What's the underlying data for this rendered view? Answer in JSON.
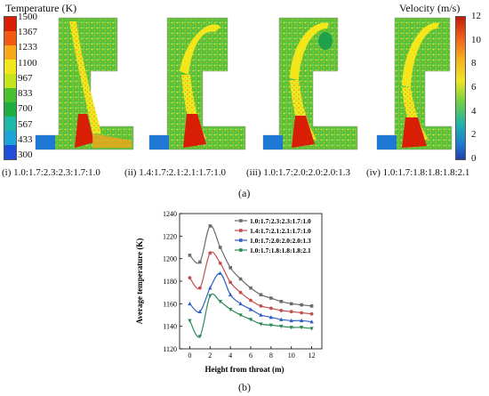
{
  "figure": {
    "label_a": "(a)",
    "label_b": "(b)",
    "temperature_legend": {
      "title": "Temperature (K)",
      "ticks": [
        "1500",
        "1367",
        "1233",
        "1100",
        "967",
        "833",
        "700",
        "567",
        "433",
        "300"
      ],
      "colors": [
        "#d81e05",
        "#f15a12",
        "#f7a81b",
        "#f3e61b",
        "#c6e51e",
        "#49c132",
        "#1fad3f",
        "#1fb7a7",
        "#20a3d6",
        "#1f4fd8"
      ]
    },
    "velocity_legend": {
      "title": "Velocity (m/s)",
      "ticks": [
        "12",
        "10",
        "8",
        "6",
        "4",
        "2",
        "0"
      ]
    },
    "panels": [
      {
        "id": "i",
        "caption": "(i) 1.0:1.7:2.3:2.3:1.7:1.0"
      },
      {
        "id": "ii",
        "caption": "(ii) 1.4:1.7:2.1:2.1:1.7:1.0"
      },
      {
        "id": "iii",
        "caption": "(iii) 1.0:1.7:2.0:2.0:2.0:1.3"
      },
      {
        "id": "iv",
        "caption": "(iv) 1.0:1.7:1.8:1.8:1.8:2.1"
      }
    ]
  },
  "chart_data": {
    "type": "line",
    "xlabel": "Height from throat (m)",
    "ylabel": "Average temperature (K)",
    "xlim": [
      -1,
      13
    ],
    "ylim": [
      1120,
      1240
    ],
    "xticks": [
      0,
      2,
      4,
      6,
      8,
      10,
      12
    ],
    "yticks": [
      1120,
      1140,
      1160,
      1180,
      1200,
      1220,
      1240
    ],
    "legend_position": "top-right",
    "series": [
      {
        "name": "1.0:1.7:2.3:2.3:1.7:1.0",
        "color": "#6b6b6b",
        "marker": "square",
        "x": [
          0,
          1,
          2,
          3,
          4,
          5,
          6,
          7,
          8,
          9,
          10,
          11,
          12
        ],
        "y": [
          1203,
          1197,
          1229,
          1210,
          1192,
          1182,
          1174,
          1168,
          1165,
          1162,
          1160,
          1159,
          1158
        ]
      },
      {
        "name": "1.4:1.7:2.1:2.1:1.7:1.0",
        "color": "#c0504d",
        "marker": "circle",
        "x": [
          0,
          1,
          2,
          3,
          4,
          5,
          6,
          7,
          8,
          9,
          10,
          11,
          12
        ],
        "y": [
          1183,
          1174,
          1205,
          1196,
          1179,
          1170,
          1163,
          1158,
          1156,
          1154,
          1153,
          1152,
          1151
        ]
      },
      {
        "name": "1.0:1.7:2.0:2.0:2.0:1.3",
        "color": "#2f5ec4",
        "marker": "triangle",
        "x": [
          0,
          1,
          2,
          3,
          4,
          5,
          6,
          7,
          8,
          9,
          10,
          11,
          12
        ],
        "y": [
          1160,
          1153,
          1174,
          1187,
          1168,
          1160,
          1155,
          1150,
          1148,
          1146,
          1145,
          1145,
          1144
        ]
      },
      {
        "name": "1.0:1.7:1.8:1.8:1.8:2.1",
        "color": "#2e8b57",
        "marker": "triangle-down",
        "x": [
          0,
          1,
          2,
          3,
          4,
          5,
          6,
          7,
          8,
          9,
          10,
          11,
          12
        ],
        "y": [
          1145,
          1131,
          1167,
          1162,
          1155,
          1150,
          1146,
          1142,
          1141,
          1140,
          1139,
          1139,
          1138
        ]
      }
    ]
  }
}
